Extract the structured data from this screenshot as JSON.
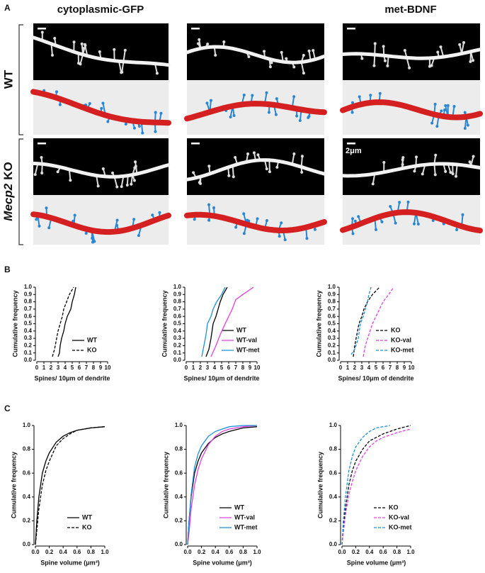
{
  "panel_labels": [
    "A",
    "B",
    "C"
  ],
  "column_titles": [
    "cytoplasmic-GFP",
    "met-BDNF"
  ],
  "row_labels": {
    "wt": "WT",
    "ko_gene": "Mecp2",
    "ko": "KO"
  },
  "scale_bar": "2μm",
  "chart_data": [
    {
      "type": "line",
      "xlabel": "Spines/ 10μm of dendrite",
      "ylabel": "Cumulative frequency",
      "xlim": [
        0,
        10
      ],
      "ylim": [
        0,
        1
      ],
      "xticks": [
        0,
        1,
        2,
        3,
        4,
        5,
        6,
        7,
        8,
        9,
        10
      ],
      "yticks": [
        {
          "value": 0,
          "label": "0.0"
        },
        0.1,
        0.2,
        0.3,
        0.4,
        0.5,
        0.6,
        0.7,
        0.8,
        0.9,
        {
          "value": 1,
          "label": "1.0"
        }
      ],
      "legend": "lower right",
      "series": [
        {
          "name": "WT",
          "color": "#000000",
          "dash": "solid",
          "x": [
            3.0,
            3.2,
            3.3,
            3.5,
            3.8,
            4.0,
            4.3,
            4.8,
            5.0,
            5.3,
            5.5
          ],
          "values": [
            0.05,
            0.1,
            0.2,
            0.3,
            0.4,
            0.5,
            0.6,
            0.7,
            0.8,
            0.9,
            1.0
          ]
        },
        {
          "name": "KO",
          "color": "#000000",
          "dash": "dashed",
          "x": [
            2.2,
            2.5,
            2.8,
            3.0,
            3.3,
            3.6,
            3.8,
            4.2,
            4.6,
            5.2
          ],
          "values": [
            0.05,
            0.15,
            0.3,
            0.4,
            0.5,
            0.6,
            0.7,
            0.8,
            0.9,
            1.0
          ]
        }
      ]
    },
    {
      "type": "line",
      "xlabel": "Spines/ 10μm of dendrite",
      "ylabel": "Cumulative frequency",
      "xlim": [
        0,
        10
      ],
      "ylim": [
        0,
        1
      ],
      "xticks": [
        0,
        1,
        2,
        3,
        4,
        5,
        6,
        7,
        8,
        9,
        10
      ],
      "yticks": [
        {
          "value": 0,
          "label": "0.0"
        },
        0.1,
        0.2,
        0.3,
        0.4,
        0.5,
        0.6,
        0.7,
        0.8,
        0.9,
        {
          "value": 1,
          "label": "1.0"
        }
      ],
      "legend": "lower right",
      "series": [
        {
          "name": "WT",
          "color": "#000000",
          "dash": "solid",
          "x": [
            2.8,
            3.2,
            3.5,
            3.8,
            4.2,
            4.5,
            4.8,
            5.2,
            5.8
          ],
          "values": [
            0.05,
            0.15,
            0.3,
            0.5,
            0.6,
            0.7,
            0.8,
            0.9,
            1.0
          ]
        },
        {
          "name": "WT-val",
          "color": "#e040e0",
          "dash": "solid",
          "x": [
            3.5,
            4.2,
            4.8,
            5.5,
            6.0,
            6.5,
            7.0,
            8.0,
            9.5
          ],
          "values": [
            0.05,
            0.2,
            0.35,
            0.5,
            0.6,
            0.7,
            0.83,
            0.9,
            1.0
          ]
        },
        {
          "name": "WT-met",
          "color": "#1e90d8",
          "dash": "solid",
          "x": [
            2.2,
            2.5,
            2.8,
            3.0,
            3.5,
            3.8,
            4.3,
            5.0,
            5.5
          ],
          "values": [
            0.05,
            0.2,
            0.35,
            0.5,
            0.6,
            0.7,
            0.8,
            0.9,
            1.0
          ]
        }
      ]
    },
    {
      "type": "line",
      "xlabel": "Spines/ 10μm of dendrite",
      "ylabel": "Cumulative frequency",
      "xlim": [
        0,
        10
      ],
      "ylim": [
        0,
        1
      ],
      "xticks": [
        0,
        1,
        2,
        3,
        4,
        5,
        6,
        7,
        8,
        9,
        10
      ],
      "yticks": [
        {
          "value": 0,
          "label": "0.0"
        },
        0.1,
        0.2,
        0.3,
        0.4,
        0.5,
        0.6,
        0.7,
        0.8,
        0.9,
        {
          "value": 1,
          "label": "1.0"
        }
      ],
      "legend": "lower right",
      "series": [
        {
          "name": "KO",
          "color": "#000000",
          "dash": "dashed",
          "x": [
            1.8,
            2.0,
            2.3,
            2.6,
            3.0,
            3.3,
            3.8,
            4.5,
            5.5
          ],
          "values": [
            0.05,
            0.2,
            0.35,
            0.5,
            0.6,
            0.7,
            0.8,
            0.9,
            1.0
          ]
        },
        {
          "name": "KO-val",
          "color": "#e040e0",
          "dash": "dashed",
          "x": [
            3.2,
            3.5,
            4.0,
            4.5,
            5.0,
            5.5,
            6.0,
            6.8,
            7.5
          ],
          "values": [
            0.05,
            0.2,
            0.35,
            0.5,
            0.6,
            0.7,
            0.8,
            0.9,
            1.0
          ]
        },
        {
          "name": "KO-met",
          "color": "#1e90d8",
          "dash": "dashed",
          "x": [
            1.5,
            2.0,
            2.5,
            2.8,
            3.2,
            3.5,
            3.8,
            4.0,
            4.3
          ],
          "values": [
            0.08,
            0.15,
            0.3,
            0.5,
            0.6,
            0.7,
            0.8,
            0.9,
            1.0
          ]
        }
      ]
    },
    {
      "type": "line",
      "xlabel": "Spine volume (μm³)",
      "ylabel": "Cumulative frequency",
      "xlim": [
        0,
        1
      ],
      "ylim": [
        0,
        1
      ],
      "xticks": [
        {
          "value": 0,
          "label": "0.0"
        },
        0.2,
        0.4,
        0.6,
        0.8,
        {
          "value": 1,
          "label": "1.0"
        }
      ],
      "yticks": [
        {
          "value": 0,
          "label": "0.0"
        },
        0.2,
        0.4,
        0.6,
        0.8,
        {
          "value": 1,
          "label": "1.0"
        }
      ],
      "legend": "lower right",
      "series": [
        {
          "name": "WT",
          "color": "#000000",
          "dash": "solid",
          "x": [
            0,
            0.02,
            0.05,
            0.1,
            0.15,
            0.2,
            0.3,
            0.4,
            0.5,
            0.6,
            0.8,
            1.0
          ],
          "values": [
            0,
            0.2,
            0.4,
            0.6,
            0.7,
            0.77,
            0.86,
            0.91,
            0.94,
            0.96,
            0.98,
            0.99
          ]
        },
        {
          "name": "KO",
          "color": "#000000",
          "dash": "dashed",
          "x": [
            0,
            0.02,
            0.05,
            0.1,
            0.15,
            0.2,
            0.3,
            0.4,
            0.5,
            0.6,
            0.8,
            1.0
          ],
          "values": [
            0,
            0.12,
            0.3,
            0.5,
            0.62,
            0.7,
            0.83,
            0.89,
            0.93,
            0.96,
            0.98,
            0.99
          ]
        }
      ]
    },
    {
      "type": "line",
      "xlabel": "Spine volume (μm³)",
      "ylabel": "Cumulative frequency",
      "xlim": [
        0,
        1
      ],
      "ylim": [
        0,
        1
      ],
      "xticks": [
        {
          "value": 0,
          "label": "0.0"
        },
        0.2,
        0.4,
        0.6,
        0.8,
        {
          "value": 1,
          "label": "1.0"
        }
      ],
      "yticks": [
        {
          "value": 0,
          "label": "0.0"
        },
        0.2,
        0.4,
        0.6,
        0.8,
        {
          "value": 1,
          "label": "1.0"
        }
      ],
      "legend": "lower right",
      "series": [
        {
          "name": "WT",
          "color": "#000000",
          "dash": "solid",
          "x": [
            0,
            0.02,
            0.05,
            0.1,
            0.15,
            0.2,
            0.3,
            0.4,
            0.5,
            0.6,
            0.8,
            1.0
          ],
          "values": [
            0,
            0.2,
            0.4,
            0.6,
            0.7,
            0.77,
            0.85,
            0.9,
            0.93,
            0.95,
            0.98,
            0.99
          ]
        },
        {
          "name": "WT-val",
          "color": "#e040e0",
          "dash": "solid",
          "x": [
            0,
            0.02,
            0.05,
            0.1,
            0.15,
            0.2,
            0.3,
            0.4,
            0.5,
            0.6,
            0.8,
            1.0
          ],
          "values": [
            0,
            0.1,
            0.3,
            0.5,
            0.63,
            0.72,
            0.84,
            0.91,
            0.95,
            0.97,
            0.99,
            1.0
          ]
        },
        {
          "name": "WT-met",
          "color": "#1e90d8",
          "dash": "solid",
          "x": [
            0,
            0.02,
            0.05,
            0.1,
            0.15,
            0.2,
            0.3,
            0.4,
            0.5,
            0.6,
            0.8,
            1.0
          ],
          "values": [
            0,
            0.2,
            0.42,
            0.65,
            0.76,
            0.83,
            0.91,
            0.95,
            0.97,
            0.99,
            1.0,
            1.0
          ]
        }
      ]
    },
    {
      "type": "line",
      "xlabel": "Spine volume (μm³)",
      "ylabel": "Cumulative frequency",
      "xlim": [
        0,
        1
      ],
      "ylim": [
        0,
        1
      ],
      "xticks": [
        {
          "value": 0,
          "label": "0.0"
        },
        0.2,
        0.4,
        0.6,
        0.8,
        {
          "value": 1,
          "label": "1.0"
        }
      ],
      "yticks": [
        {
          "value": 0,
          "label": "0.0"
        },
        0.2,
        0.4,
        0.6,
        0.8,
        {
          "value": 1,
          "label": "1.0"
        }
      ],
      "legend": "lower right",
      "series": [
        {
          "name": "KO",
          "color": "#000000",
          "dash": "dashed",
          "x": [
            0,
            0.02,
            0.05,
            0.1,
            0.15,
            0.2,
            0.3,
            0.4,
            0.5,
            0.6,
            0.8,
            1.0
          ],
          "values": [
            0,
            0.15,
            0.3,
            0.5,
            0.62,
            0.7,
            0.8,
            0.87,
            0.9,
            0.93,
            0.97,
            1.0
          ]
        },
        {
          "name": "KO-val",
          "color": "#e040e0",
          "dash": "dashed",
          "x": [
            0,
            0.02,
            0.05,
            0.1,
            0.15,
            0.2,
            0.3,
            0.4,
            0.5,
            0.6,
            0.8,
            1.0
          ],
          "values": [
            0,
            0.1,
            0.25,
            0.42,
            0.53,
            0.62,
            0.74,
            0.82,
            0.87,
            0.9,
            0.94,
            0.97
          ]
        },
        {
          "name": "KO-met",
          "color": "#1e90d8",
          "dash": "dashed",
          "x": [
            0,
            0.02,
            0.05,
            0.1,
            0.15,
            0.2,
            0.3,
            0.4,
            0.5,
            0.6,
            0.7
          ],
          "values": [
            0,
            0.2,
            0.4,
            0.62,
            0.74,
            0.82,
            0.9,
            0.95,
            0.98,
            0.99,
            1.0
          ]
        }
      ]
    }
  ]
}
